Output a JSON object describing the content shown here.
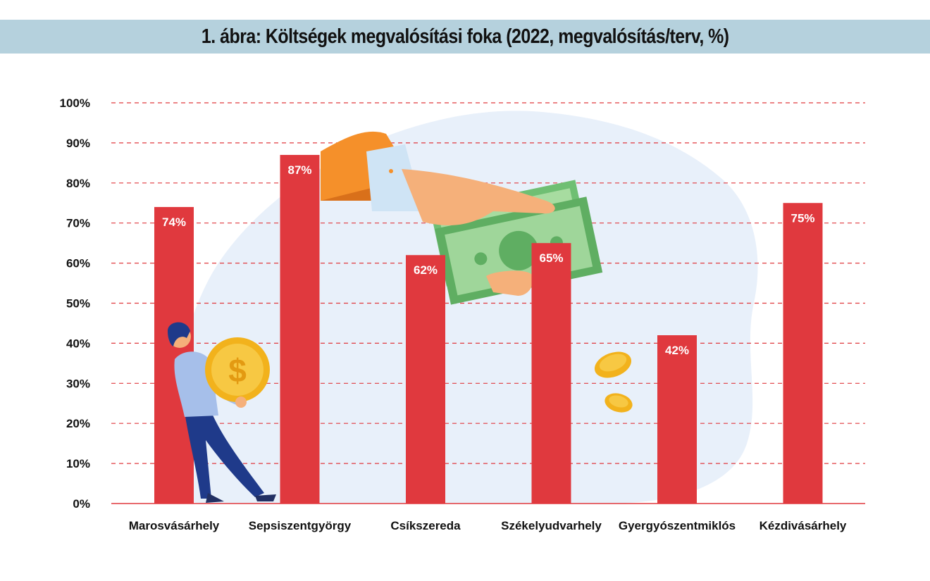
{
  "chart_data": {
    "type": "bar",
    "title": "1. ábra: Költségek megvalósítási foka (2022, megvalósítás/terv, %)",
    "categories": [
      "Marosvásárhely",
      "Sepsiszentgyörgy",
      "Csíkszereda",
      "Székelyudvarhely",
      "Gyergyószentmiklós",
      "Kézdivásárhely"
    ],
    "values": [
      74,
      87,
      62,
      65,
      42,
      75
    ],
    "data_labels": [
      "74%",
      "87%",
      "62%",
      "65%",
      "42%",
      "75%"
    ],
    "y_ticks": [
      "0%",
      "10%",
      "20%",
      "30%",
      "40%",
      "50%",
      "60%",
      "70%",
      "80%",
      "90%",
      "100%"
    ],
    "ylim": [
      0,
      100
    ],
    "xlabel": "",
    "ylabel": "",
    "grid": true,
    "legend": "none"
  },
  "colors": {
    "bar": "#e0393e",
    "grid": "#e0393e",
    "title_bg": "#b5d1dd",
    "blob": "#e8f0fa"
  },
  "illustrations": [
    "man-carrying-coin-illustration",
    "hand-giving-money-illustration",
    "falling-coins-illustration"
  ]
}
